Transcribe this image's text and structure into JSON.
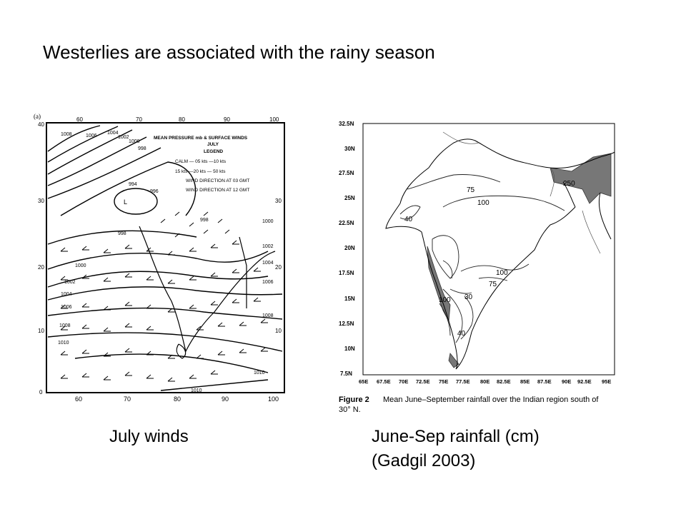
{
  "slide": {
    "title": "Westerlies are associated with the rainy season",
    "left_caption": "July winds",
    "right_caption_line1": "June-Sep rainfall (cm)",
    "right_caption_line2": "(Gadgil 2003)"
  },
  "wind_map": {
    "panel_label": "(a)",
    "legend": {
      "title_line1": "MEAN PRESSURE mb & SURFACE WINDS",
      "title_line2": "JULY",
      "title_line3": "LEGEND",
      "row1": "CALM — 05 kts —10 kts",
      "row2": "15 kts —20 kts — 50 kts",
      "row3": "WIND DIRECTION AT 03 GMT",
      "row4": "WIND DIRECTION AT 12 GMT"
    },
    "lon_ticks": [
      "60",
      "70",
      "80",
      "90",
      "100"
    ],
    "lat_ticks": [
      "40",
      "30",
      "20",
      "10",
      "0"
    ],
    "isobar_labels": [
      "1008",
      "1006",
      "1004",
      "1002",
      "1000",
      "998",
      "994",
      "996",
      "L",
      "998",
      "998",
      "1000",
      "1002",
      "1004",
      "1006",
      "1008",
      "1010",
      "1010",
      "1000",
      "1002",
      "1004",
      "1006",
      "1008",
      "1010",
      "1010"
    ]
  },
  "rain_map": {
    "lat_ticks": [
      "32.5N",
      "30N",
      "27.5N",
      "25N",
      "22.5N",
      "20N",
      "17.5N",
      "15N",
      "12.5N",
      "10N",
      "7.5N"
    ],
    "lon_ticks": [
      "65E",
      "67.5E",
      "70E",
      "72.5E",
      "75E",
      "77.5E",
      "80E",
      "82.5E",
      "85E",
      "87.5E",
      "90E",
      "92.5E",
      "95E"
    ],
    "contour_labels": [
      "75",
      "100",
      "40",
      "250",
      "100",
      "75",
      "30",
      "100",
      "40"
    ],
    "figure_caption_label": "Figure 2",
    "figure_caption_text": "Mean June–September rainfall over the Indian region south of",
    "figure_caption_line2": "30° N."
  }
}
